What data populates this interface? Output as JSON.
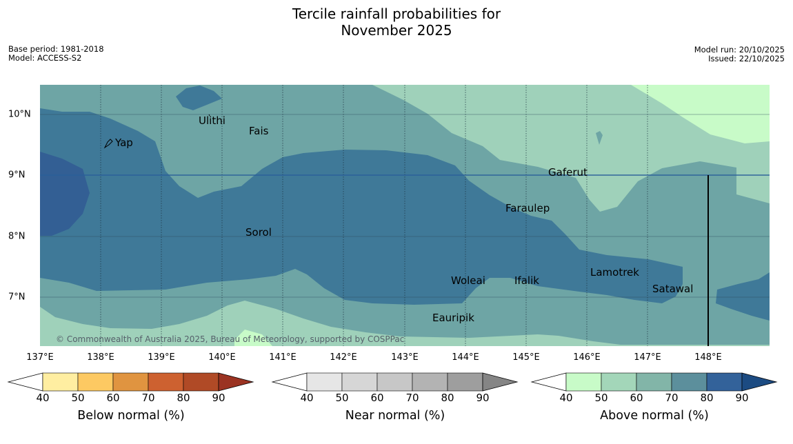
{
  "title_line1": "Tercile rainfall probabilities for",
  "title_line2": "November 2025",
  "base_period": "Base period: 1981-2018",
  "model": "Model: ACCESS-S2",
  "model_run": "Model run: 20/10/2025",
  "issued": "Issued: 22/10/2025",
  "copyright": "© Commonwealth of Australia 2025, Bureau of Meteorology, supported by COSPPac",
  "longitude_labels": [
    "137°E",
    "138°E",
    "139°E",
    "140°E",
    "141°E",
    "142°E",
    "143°E",
    "144°E",
    "145°E",
    "146°E",
    "147°E",
    "148°E"
  ],
  "latitude_labels": [
    "10°N",
    "9°N",
    "8°N",
    "7°N"
  ],
  "places": {
    "yap": "Yap",
    "ulithi": "Ulithi",
    "fais": "Fais",
    "gaferut": "Gaferut",
    "faraulep": "Faraulep",
    "sorol": "Sorol",
    "woleai": "Woleai",
    "ifalik": "Ifalik",
    "lamotrek": "Lamotrek",
    "satawal": "Satawal",
    "eauripik": "Eauripik"
  },
  "colorbars": {
    "below": {
      "title": "Below normal (%)",
      "ticks": [
        "40",
        "50",
        "60",
        "70",
        "80",
        "90"
      ],
      "colors": [
        "#ffeea1",
        "#fdc962",
        "#e09440",
        "#cd6130",
        "#b04a26",
        "#9b3322"
      ]
    },
    "near": {
      "title": "Near normal (%)",
      "ticks": [
        "40",
        "50",
        "60",
        "70",
        "80",
        "90"
      ],
      "colors": [
        "#e6e6e6",
        "#d6d6d6",
        "#c7c7c7",
        "#b3b3b3",
        "#9e9e9e",
        "#858585"
      ]
    },
    "above": {
      "title": "Above normal (%)",
      "ticks": [
        "40",
        "50",
        "60",
        "70",
        "80",
        "90"
      ],
      "colors": [
        "#c8fbc8",
        "#a3d6b9",
        "#82b5a8",
        "#5c8f9c",
        "#33629a",
        "#1c4b82"
      ]
    }
  },
  "map_colors": {
    "a40_50": "#9fd1ba",
    "a50_60": "#6ea5a5",
    "a60_70": "#3f7998",
    "a70_80": "#335f94",
    "a30_40": "#c8fbc8"
  }
}
